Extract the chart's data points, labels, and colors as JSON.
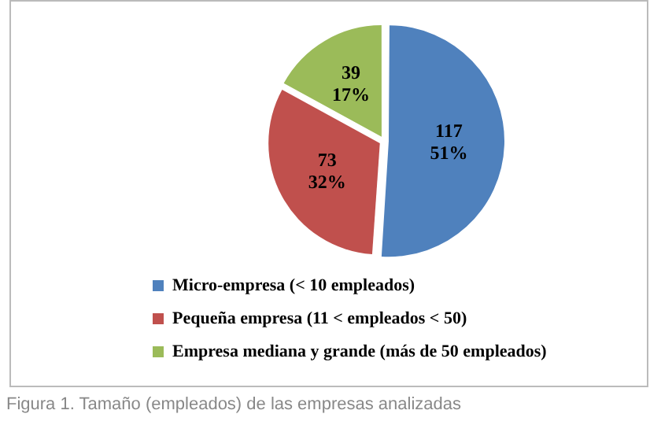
{
  "chart_data": {
    "type": "pie",
    "categories": [
      "Micro-empresa (< 10 empleados)",
      "Pequeña empresa (11 < empleados < 50)",
      "Empresa mediana y grande (más de 50 empleados)"
    ],
    "values": [
      117,
      73,
      39
    ],
    "colors": [
      "#4f81bd",
      "#c0504d",
      "#9bbb59"
    ],
    "value_labels": [
      "117\n51%",
      "73\n32%",
      "39\n17%"
    ],
    "legend": "bottom",
    "annotations": [
      "Figura 1. Tamaño (empleados) de las empresas analizadas"
    ]
  }
}
